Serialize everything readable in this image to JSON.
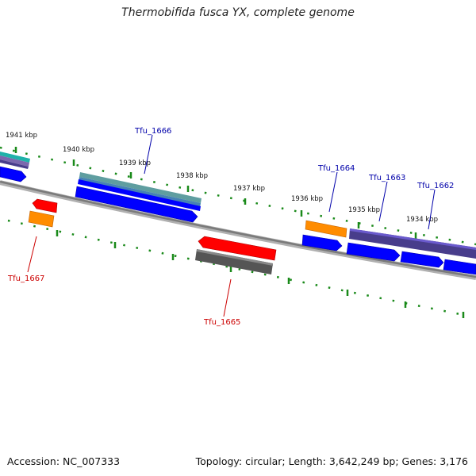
{
  "title": "Thermobifida fusca YX, complete genome",
  "accession": "Accession: NC_007333",
  "summary": "Topology: circular; Length: 3,642,249 bp; Genes: 3,176",
  "colors": {
    "backbone": "#808080",
    "ticks": "#1a8a1a",
    "gene_blue": "#0000ff",
    "gene_orange": "#ff8c00",
    "gene_red": "#ff0000",
    "gene_gray": "#666666",
    "gene_slate": "#483d8b",
    "gene_steel": "#4682b4",
    "gene_teal": "#20b2aa",
    "label_blue": "#0000aa",
    "label_red": "#cc0000"
  },
  "kbp_ticks": [
    "1941 kbp",
    "1940 kbp",
    "1939 kbp",
    "1938 kbp",
    "1937 kbp",
    "1936 kbp",
    "1935 kbp",
    "1934 kbp"
  ],
  "gene_labels": {
    "tfu_1666": "Tfu_1666",
    "tfu_1664": "Tfu_1664",
    "tfu_1663": "Tfu_1663",
    "tfu_1662": "Tfu_1662",
    "tfu_1667": "Tfu_1667",
    "tfu_1665": "Tfu_1665"
  }
}
